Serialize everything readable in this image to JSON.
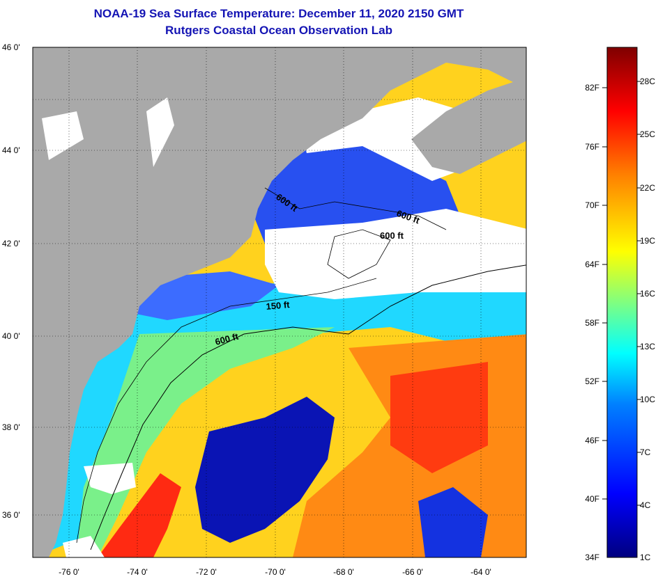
{
  "title": {
    "line1": "NOAA-19 Sea Surface Temperature:  December 11, 2020 2150 GMT",
    "line2": "Rutgers Coastal Ocean Observation Lab"
  },
  "axes": {
    "lat_ticks": [
      "46 0'",
      "44 0'",
      "42 0'",
      "40 0'",
      "38 0'",
      "36 0'"
    ],
    "lon_ticks": [
      "-76 0'",
      "-74 0'",
      "-72 0'",
      "-70 0'",
      "-68 0'",
      "-66 0'",
      "-64 0'"
    ],
    "lat_range": [
      35.0,
      46.0
    ],
    "lon_range": [
      -77.0,
      -62.5
    ]
  },
  "contour_labels": [
    "600 ft",
    "600 ft",
    "600 ft",
    "150 ft",
    "600 ft"
  ],
  "colorbar": {
    "fahrenheit_labels": [
      "82F",
      "76F",
      "70F",
      "64F",
      "58F",
      "52F",
      "46F",
      "40F",
      "34F"
    ],
    "celsius_labels": [
      "28C",
      "25C",
      "22C",
      "19C",
      "16C",
      "13C",
      "10C",
      "7C",
      "4C",
      "1C"
    ],
    "colors": [
      "#00007f",
      "#0000ff",
      "#0080ff",
      "#00ffff",
      "#80ff80",
      "#ffff00",
      "#ff8000",
      "#ff0000",
      "#7f0000"
    ]
  },
  "colors": {
    "land": "#a9a9a9",
    "cloud": "#ffffff",
    "title": "#1414b4"
  }
}
